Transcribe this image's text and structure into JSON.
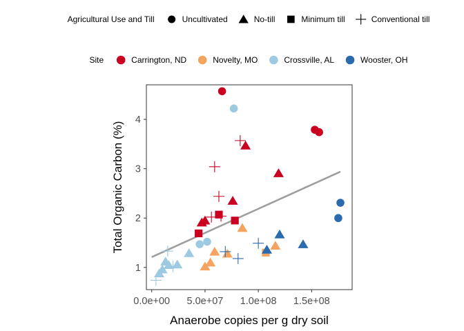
{
  "chart_data": {
    "type": "scatter",
    "xlabel": "Anaerobe copies per g dry soil",
    "ylabel": "Total Organic Carbon (%)",
    "xlim": [
      -5000000,
      188000000
    ],
    "ylim": [
      0.55,
      4.7
    ],
    "x_ticks": [
      0,
      50000000,
      100000000,
      150000000
    ],
    "x_tick_labels": [
      "0.0e+00",
      "5.0e+07",
      "1.0e+08",
      "1.5e+08"
    ],
    "y_ticks": [
      1,
      2,
      3,
      4
    ],
    "y_tick_labels": [
      "1",
      "2",
      "3",
      "4"
    ],
    "grid": false,
    "legend_position": "top",
    "legends": {
      "shape": {
        "title": "Agricultural Use and Till",
        "entries": [
          {
            "key": "uncultivated",
            "label": "Uncultivated",
            "shape": "circle"
          },
          {
            "key": "notill",
            "label": "No-till",
            "shape": "triangle"
          },
          {
            "key": "mintill",
            "label": "Minimum till",
            "shape": "square"
          },
          {
            "key": "conv",
            "label": "Conventional till",
            "shape": "plus"
          }
        ]
      },
      "color": {
        "title": "Site",
        "entries": [
          {
            "key": "carrington",
            "label": "Carrington, ND",
            "color": "#CA0020"
          },
          {
            "key": "novelty",
            "label": "Novelty, MO",
            "color": "#F4A460"
          },
          {
            "key": "crossville",
            "label": "Crossville, AL",
            "color": "#9ECAE1"
          },
          {
            "key": "wooster",
            "label": "Wooster, OH",
            "color": "#2B6AAD"
          }
        ]
      }
    },
    "trend_line": {
      "x": [
        0,
        177000000
      ],
      "y": [
        1.21,
        2.94
      ],
      "color": "#9E9E9E"
    },
    "points": [
      {
        "x": 66000000,
        "y": 4.57,
        "site": "carrington",
        "till": "uncultivated"
      },
      {
        "x": 153000000,
        "y": 3.79,
        "site": "carrington",
        "till": "uncultivated"
      },
      {
        "x": 157000000,
        "y": 3.74,
        "site": "carrington",
        "till": "uncultivated"
      },
      {
        "x": 83000000,
        "y": 3.57,
        "site": "carrington",
        "till": "conv"
      },
      {
        "x": 88000000,
        "y": 3.47,
        "site": "carrington",
        "till": "notill"
      },
      {
        "x": 59000000,
        "y": 3.04,
        "site": "carrington",
        "till": "conv"
      },
      {
        "x": 119000000,
        "y": 2.91,
        "site": "carrington",
        "till": "notill"
      },
      {
        "x": 63000000,
        "y": 2.44,
        "site": "carrington",
        "till": "conv"
      },
      {
        "x": 76000000,
        "y": 2.35,
        "site": "carrington",
        "till": "notill"
      },
      {
        "x": 63000000,
        "y": 2.07,
        "site": "carrington",
        "till": "mintill"
      },
      {
        "x": 65000000,
        "y": 2.04,
        "site": "carrington",
        "till": "conv"
      },
      {
        "x": 56000000,
        "y": 2.02,
        "site": "carrington",
        "till": "conv"
      },
      {
        "x": 78000000,
        "y": 1.95,
        "site": "carrington",
        "till": "mintill"
      },
      {
        "x": 50000000,
        "y": 1.95,
        "site": "carrington",
        "till": "notill"
      },
      {
        "x": 47000000,
        "y": 1.91,
        "site": "carrington",
        "till": "notill"
      },
      {
        "x": 44000000,
        "y": 1.69,
        "site": "carrington",
        "till": "mintill"
      },
      {
        "x": 85000000,
        "y": 1.8,
        "site": "novelty",
        "till": "notill"
      },
      {
        "x": 116000000,
        "y": 1.44,
        "site": "novelty",
        "till": "notill"
      },
      {
        "x": 107000000,
        "y": 1.3,
        "site": "novelty",
        "till": "mintill"
      },
      {
        "x": 59000000,
        "y": 1.32,
        "site": "novelty",
        "till": "notill"
      },
      {
        "x": 71000000,
        "y": 1.28,
        "site": "novelty",
        "till": "notill"
      },
      {
        "x": 55000000,
        "y": 1.1,
        "site": "novelty",
        "till": "notill"
      },
      {
        "x": 50000000,
        "y": 1.02,
        "site": "novelty",
        "till": "notill"
      },
      {
        "x": 77000000,
        "y": 4.22,
        "site": "crossville",
        "till": "uncultivated"
      },
      {
        "x": 52000000,
        "y": 1.52,
        "site": "crossville",
        "till": "uncultivated"
      },
      {
        "x": 45000000,
        "y": 1.47,
        "site": "crossville",
        "till": "uncultivated"
      },
      {
        "x": 35000000,
        "y": 1.29,
        "site": "crossville",
        "till": "notill"
      },
      {
        "x": 15000000,
        "y": 1.33,
        "site": "crossville",
        "till": "conv"
      },
      {
        "x": 13000000,
        "y": 1.12,
        "site": "crossville",
        "till": "notill"
      },
      {
        "x": 16000000,
        "y": 1.05,
        "site": "crossville",
        "till": "notill"
      },
      {
        "x": 20000000,
        "y": 1.02,
        "site": "crossville",
        "till": "conv"
      },
      {
        "x": 24000000,
        "y": 1.06,
        "site": "crossville",
        "till": "notill"
      },
      {
        "x": 10000000,
        "y": 0.96,
        "site": "crossville",
        "till": "notill"
      },
      {
        "x": 7000000,
        "y": 0.88,
        "site": "crossville",
        "till": "notill"
      },
      {
        "x": 4000000,
        "y": 0.74,
        "site": "crossville",
        "till": "conv"
      },
      {
        "x": 177000000,
        "y": 2.31,
        "site": "wooster",
        "till": "uncultivated"
      },
      {
        "x": 175000000,
        "y": 2.0,
        "site": "wooster",
        "till": "uncultivated"
      },
      {
        "x": 120000000,
        "y": 1.67,
        "site": "wooster",
        "till": "notill"
      },
      {
        "x": 142000000,
        "y": 1.47,
        "site": "wooster",
        "till": "notill"
      },
      {
        "x": 100000000,
        "y": 1.49,
        "site": "wooster",
        "till": "conv"
      },
      {
        "x": 108000000,
        "y": 1.36,
        "site": "wooster",
        "till": "notill"
      },
      {
        "x": 69000000,
        "y": 1.32,
        "site": "wooster",
        "till": "conv"
      },
      {
        "x": 81000000,
        "y": 1.18,
        "site": "wooster",
        "till": "conv"
      }
    ]
  }
}
